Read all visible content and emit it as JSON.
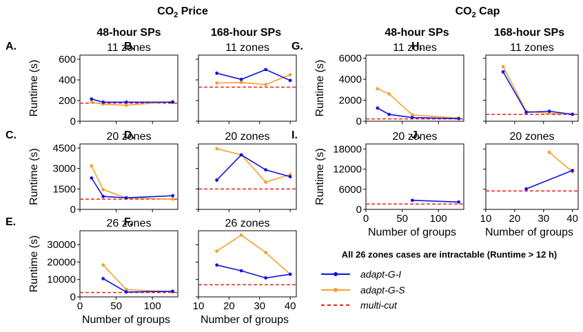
{
  "headings": {
    "price": {
      "prefix": "CO",
      "sub": "2",
      "suffix": " Price"
    },
    "cap": {
      "prefix": "CO",
      "sub": "2",
      "suffix": " Cap"
    }
  },
  "column_titles": [
    "48-hour SPs",
    "168-hour SPs",
    "48-hour SPs",
    "168-hour SPs"
  ],
  "intractable_note": "All 26 zones cases are intractable (Runtime > 12 h)",
  "legend": [
    {
      "label": "adapt-G-I",
      "color": "#1010e6",
      "style": "solid-marker"
    },
    {
      "label": "adapt-G-S",
      "color": "#f5a02a",
      "style": "solid-marker"
    },
    {
      "label": "multi-cut",
      "color": "#e8201e",
      "style": "dashed"
    }
  ],
  "colors": {
    "adapt_G_I": "#1010e6",
    "adapt_G_S": "#f5a02a",
    "multi_cut": "#e8201e"
  },
  "chart_data": [
    {
      "id": "A",
      "panel_label": "A.",
      "type": "line",
      "title": "11 zones",
      "ylabel": "Runtime (s)",
      "xlabel": "",
      "xlim": [
        0,
        135
      ],
      "xticks": [
        0,
        50,
        100
      ],
      "xticklabels": [
        "",
        "",
        ""
      ],
      "ylim": [
        0,
        640
      ],
      "yticks": [
        0,
        200,
        400,
        600
      ],
      "yticklabels": [
        "0",
        "200",
        "400",
        "600"
      ],
      "series": [
        {
          "name": "adapt-G-I",
          "x": [
            16,
            32,
            64,
            128
          ],
          "y": [
            215,
            185,
            185,
            185
          ]
        },
        {
          "name": "adapt-G-S",
          "x": [
            16,
            32,
            64,
            128
          ],
          "y": [
            185,
            165,
            155,
            190
          ]
        }
      ],
      "multicut": 175
    },
    {
      "id": "B",
      "panel_label": "B.",
      "type": "line",
      "title": "11 zones",
      "ylabel": "",
      "xlabel": "",
      "xlim": [
        10,
        42
      ],
      "xticks": [
        10,
        20,
        30,
        40
      ],
      "xticklabels": [
        "",
        "",
        "",
        ""
      ],
      "ylim": [
        0,
        640
      ],
      "yticks": [
        0,
        200,
        400,
        600
      ],
      "yticklabels": [
        "",
        "",
        "",
        ""
      ],
      "series": [
        {
          "name": "adapt-G-I",
          "x": [
            16,
            24,
            32,
            40
          ],
          "y": [
            465,
            405,
            500,
            395
          ]
        },
        {
          "name": "adapt-G-S",
          "x": [
            16,
            24,
            32,
            40
          ],
          "y": [
            370,
            375,
            355,
            450
          ]
        }
      ],
      "multicut": 330
    },
    {
      "id": "C",
      "panel_label": "C.",
      "type": "line",
      "title": "20 zones",
      "ylabel": "Runtime (s)",
      "xlabel": "",
      "xlim": [
        0,
        135
      ],
      "xticks": [
        0,
        50,
        100
      ],
      "xticklabels": [
        "",
        "",
        ""
      ],
      "ylim": [
        0,
        4800
      ],
      "yticks": [
        0,
        1500,
        3000,
        4500
      ],
      "yticklabels": [
        "0",
        "1500",
        "3000",
        "4500"
      ],
      "series": [
        {
          "name": "adapt-G-I",
          "x": [
            16,
            32,
            64,
            128
          ],
          "y": [
            2300,
            950,
            850,
            1000
          ]
        },
        {
          "name": "adapt-G-S",
          "x": [
            16,
            32,
            64,
            128
          ],
          "y": [
            3200,
            1450,
            850,
            750
          ]
        }
      ],
      "multicut": 750
    },
    {
      "id": "D",
      "panel_label": "D.",
      "type": "line",
      "title": "20 zones",
      "ylabel": "",
      "xlabel": "",
      "xlim": [
        10,
        42
      ],
      "xticks": [
        10,
        20,
        30,
        40
      ],
      "xticklabels": [
        "",
        "",
        "",
        ""
      ],
      "ylim": [
        0,
        4800
      ],
      "yticks": [
        0,
        1500,
        3000,
        4500
      ],
      "yticklabels": [
        "",
        "",
        "",
        ""
      ],
      "series": [
        {
          "name": "adapt-G-I",
          "x": [
            16,
            24,
            32,
            40
          ],
          "y": [
            2150,
            4000,
            2900,
            2400
          ]
        },
        {
          "name": "adapt-G-S",
          "x": [
            16,
            24,
            32,
            40
          ],
          "y": [
            4450,
            4000,
            2000,
            2550
          ]
        }
      ],
      "multicut": 1500
    },
    {
      "id": "E",
      "panel_label": "E.",
      "type": "line",
      "title": "26 zones",
      "ylabel": "Runtime (s)",
      "xlabel": "Number of groups",
      "xlim": [
        0,
        135
      ],
      "xticks": [
        0,
        50,
        100
      ],
      "xticklabels": [
        "0",
        "50",
        "100"
      ],
      "ylim": [
        0,
        38000
      ],
      "yticks": [
        0,
        10000,
        20000,
        30000
      ],
      "yticklabels": [
        "0",
        "10000",
        "20000",
        "30000"
      ],
      "series": [
        {
          "name": "adapt-G-I",
          "x": [
            32,
            64,
            128
          ],
          "y": [
            10500,
            2800,
            3200
          ]
        },
        {
          "name": "adapt-G-S",
          "x": [
            32,
            64,
            128
          ],
          "y": [
            18300,
            4200,
            2900
          ]
        }
      ],
      "multicut": 2500
    },
    {
      "id": "F",
      "panel_label": "F.",
      "type": "line",
      "title": "26 zones",
      "ylabel": "",
      "xlabel": "Number of groups",
      "xlim": [
        10,
        42
      ],
      "xticks": [
        10,
        20,
        30,
        40
      ],
      "xticklabels": [
        "10",
        "20",
        "30",
        "40"
      ],
      "ylim": [
        0,
        38000
      ],
      "yticks": [
        0,
        10000,
        20000,
        30000
      ],
      "yticklabels": [
        "",
        "",
        "",
        ""
      ],
      "series": [
        {
          "name": "adapt-G-I",
          "x": [
            16,
            24,
            32,
            40
          ],
          "y": [
            18300,
            15000,
            10900,
            13000
          ]
        },
        {
          "name": "adapt-G-S",
          "x": [
            16,
            24,
            32,
            40
          ],
          "y": [
            26300,
            35500,
            25500,
            13000
          ]
        }
      ],
      "multicut": 7000
    },
    {
      "id": "G",
      "panel_label": "G.",
      "type": "line",
      "title": "11 zones",
      "ylabel": "Runtime (s)",
      "xlabel": "",
      "xlim": [
        0,
        135
      ],
      "xticks": [
        0,
        50,
        100
      ],
      "xticklabels": [
        "",
        "",
        ""
      ],
      "ylim": [
        0,
        6300
      ],
      "yticks": [
        0,
        2000,
        4000,
        6000
      ],
      "yticklabels": [
        "0",
        "2000",
        "4000",
        "6000"
      ],
      "series": [
        {
          "name": "adapt-G-I",
          "x": [
            16,
            32,
            64,
            128
          ],
          "y": [
            1250,
            650,
            350,
            250
          ]
        },
        {
          "name": "adapt-G-S",
          "x": [
            16,
            32,
            64,
            128
          ],
          "y": [
            3100,
            2600,
            600,
            300
          ]
        }
      ],
      "multicut": 220
    },
    {
      "id": "H",
      "panel_label": "H.",
      "type": "line",
      "title": "11 zones",
      "ylabel": "",
      "xlabel": "",
      "xlim": [
        10,
        42
      ],
      "xticks": [
        10,
        20,
        30,
        40
      ],
      "xticklabels": [
        "",
        "",
        "",
        ""
      ],
      "ylim": [
        0,
        6300
      ],
      "yticks": [
        0,
        2000,
        4000,
        6000
      ],
      "yticklabels": [
        "",
        "",
        "",
        ""
      ],
      "series": [
        {
          "name": "adapt-G-I",
          "x": [
            16,
            24,
            32,
            40
          ],
          "y": [
            4700,
            850,
            950,
            650
          ]
        },
        {
          "name": "adapt-G-S",
          "x": [
            16,
            24,
            32,
            40
          ],
          "y": [
            5200,
            950,
            750,
            700
          ]
        }
      ],
      "multicut": 650
    },
    {
      "id": "I",
      "panel_label": "I.",
      "type": "line",
      "title": "20 zones",
      "ylabel": "Runtime (s)",
      "xlabel": "Number of groups",
      "xlim": [
        0,
        135
      ],
      "xticks": [
        0,
        50,
        100
      ],
      "xticklabels": [
        "0",
        "50",
        "100"
      ],
      "ylim": [
        0,
        19500
      ],
      "yticks": [
        0,
        6000,
        12000,
        18000
      ],
      "yticklabels": [
        "0",
        "6000",
        "12000",
        "18000"
      ],
      "series": [
        {
          "name": "adapt-G-I",
          "x": [
            64,
            128
          ],
          "y": [
            2700,
            2200
          ]
        }
      ],
      "multicut": 1600
    },
    {
      "id": "J",
      "panel_label": "J.",
      "type": "line",
      "title": "20 zones",
      "ylabel": "",
      "xlabel": "Number of groups",
      "xlim": [
        10,
        42
      ],
      "xticks": [
        10,
        20,
        30,
        40
      ],
      "xticklabels": [
        "10",
        "20",
        "30",
        "40"
      ],
      "ylim": [
        0,
        19500
      ],
      "yticks": [
        0,
        6000,
        12000,
        18000
      ],
      "yticklabels": [
        "",
        "",
        "",
        ""
      ],
      "series": [
        {
          "name": "adapt-G-I",
          "x": [
            24,
            40
          ],
          "y": [
            6100,
            11600
          ]
        },
        {
          "name": "adapt-G-S",
          "x": [
            32,
            40
          ],
          "y": [
            17000,
            11200
          ]
        }
      ],
      "multicut": 5500
    }
  ]
}
